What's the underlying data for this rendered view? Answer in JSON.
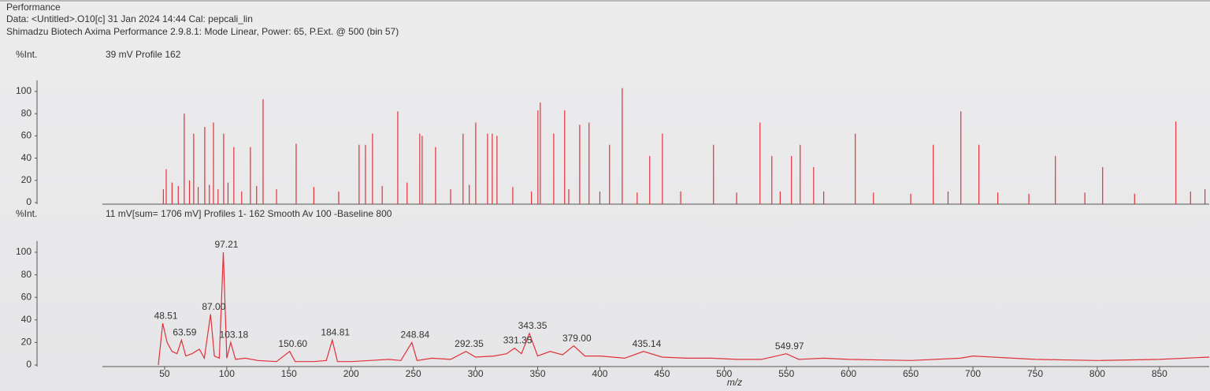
{
  "header": {
    "title": "Performance",
    "data_line": "Data: <Untitled>.O10[c] 31 Jan 2024 14:44 Cal: pepcali_lin",
    "instrument_line": "Shimadzu Biotech Axima Performance 2.9.8.1: Mode Linear, Power: 65, P.Ext. @ 500 (bin 57)"
  },
  "chart_data": [
    {
      "type": "spikes",
      "ylabel": "%Int.",
      "subtitle": "39 mV  Profile 162",
      "color": "#e0303a",
      "x": [
        51.3,
        65.8,
        73.4,
        82.3,
        89.3,
        97.5,
        105.7,
        119.0,
        129.2,
        155.8,
        206.4,
        211.5,
        217.2,
        237.5,
        255.2,
        257.1,
        267.9,
        290.0,
        300.2,
        309.7,
        313.5,
        317.3,
        350.2,
        352.1,
        362.9,
        371.7,
        383.8,
        391.3,
        407.8,
        418.0,
        440.1,
        450.3,
        491.4,
        528.8,
        538.3,
        554.1,
        561.1,
        571.9,
        605.4,
        668.1,
        690.3,
        704.8,
        766.3,
        804.3,
        863.2,
        886.6,
        49,
        56,
        61,
        70,
        77,
        86,
        93,
        101,
        112,
        124,
        140,
        170,
        190,
        225,
        245,
        280,
        295,
        330,
        345,
        375,
        400,
        430,
        465,
        510,
        545,
        580,
        620,
        650,
        680,
        720,
        745,
        790,
        830,
        875
      ],
      "values": [
        30,
        80,
        62,
        68,
        72,
        62,
        50,
        50,
        93,
        53,
        52,
        52,
        62,
        82,
        62,
        60,
        50,
        62,
        72,
        62,
        62,
        60,
        83,
        90,
        62,
        83,
        70,
        72,
        52,
        103,
        42,
        62,
        52,
        72,
        42,
        42,
        52,
        32,
        62,
        52,
        82,
        52,
        42,
        32,
        73,
        12,
        12,
        18,
        15,
        20,
        14,
        16,
        12,
        18,
        10,
        15,
        12,
        14,
        10,
        15,
        18,
        12,
        16,
        14,
        10,
        12,
        10,
        9,
        10,
        9,
        10,
        10,
        9,
        8,
        10,
        9,
        8,
        9,
        8,
        10
      ],
      "xlim": [
        0,
        890
      ],
      "ylim": [
        0,
        110
      ],
      "yticks": [
        0,
        20,
        40,
        60,
        80,
        100
      ]
    },
    {
      "type": "line",
      "ylabel": "%Int.",
      "subtitle": "11 mV[sum= 1706 mV]  Profiles 1- 162 Smooth Av 100 -Baseline 800",
      "xlabel": "m/z",
      "color": "#e0303a",
      "x": [
        45,
        48.51,
        52,
        56,
        60,
        63.59,
        67,
        72,
        78,
        82,
        87,
        90,
        94,
        97.21,
        100,
        103.18,
        107,
        115,
        125,
        140,
        150.6,
        155,
        170,
        180,
        184.81,
        189,
        200,
        215,
        230,
        240,
        248.84,
        253,
        265,
        280,
        292.35,
        300,
        315,
        325,
        331.35,
        337,
        343.35,
        350,
        360,
        370,
        379,
        388,
        400,
        420,
        435.14,
        450,
        470,
        490,
        510,
        530,
        549.97,
        560,
        580,
        600,
        650,
        690,
        700,
        750,
        800,
        850,
        890
      ],
      "values": [
        0,
        37,
        20,
        12,
        10,
        22,
        8,
        10,
        14,
        6,
        45,
        8,
        6,
        100,
        6,
        20,
        5,
        6,
        4,
        3,
        12,
        3,
        3,
        4,
        22,
        3,
        3,
        4,
        5,
        4,
        20,
        4,
        6,
        5,
        12,
        7,
        8,
        10,
        15,
        10,
        28,
        8,
        12,
        9,
        17,
        8,
        8,
        6,
        12,
        7,
        6,
        6,
        5,
        5,
        10,
        5,
        6,
        5,
        4,
        6,
        8,
        5,
        4,
        5,
        7
      ],
      "peaks": [
        {
          "label": "48.51",
          "x": 48.51,
          "y": 37
        },
        {
          "label": "63.59",
          "x": 63.59,
          "y": 22
        },
        {
          "label": "87.00",
          "x": 87,
          "y": 45
        },
        {
          "label": "97.21",
          "x": 97.21,
          "y": 100
        },
        {
          "label": "103.18",
          "x": 103.18,
          "y": 20
        },
        {
          "label": "150.60",
          "x": 150.6,
          "y": 12
        },
        {
          "label": "184.81",
          "x": 184.81,
          "y": 22
        },
        {
          "label": "248.84",
          "x": 248.84,
          "y": 20
        },
        {
          "label": "292.35",
          "x": 292.35,
          "y": 12
        },
        {
          "label": "331.35",
          "x": 331.35,
          "y": 15
        },
        {
          "label": "343.35",
          "x": 343.35,
          "y": 28
        },
        {
          "label": "379.00",
          "x": 379,
          "y": 17
        },
        {
          "label": "435.14",
          "x": 435.14,
          "y": 12
        },
        {
          "label": "549.97",
          "x": 549.97,
          "y": 10
        }
      ],
      "xlim": [
        0,
        890
      ],
      "ylim": [
        0,
        110
      ],
      "yticks": [
        0,
        20,
        40,
        60,
        80,
        100
      ],
      "xticks": [
        50,
        100,
        150,
        200,
        250,
        300,
        350,
        400,
        450,
        500,
        550,
        600,
        650,
        700,
        750,
        800,
        850
      ]
    }
  ]
}
